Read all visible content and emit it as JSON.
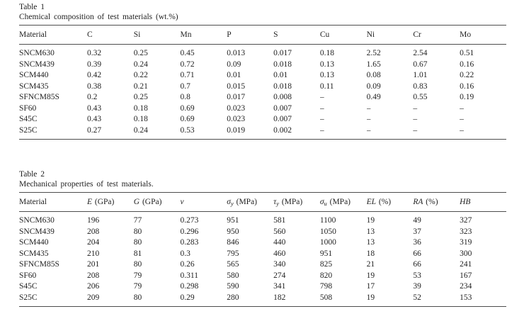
{
  "page": {
    "background_color": "#ffffff",
    "text_color": "#1f1f1f",
    "rule_color": "#4d4d4d"
  },
  "tables": {
    "table1": {
      "caption_label": "Table 1",
      "caption_text": "Chemical composition of test materials (wt.%)",
      "columns": [
        {
          "text": "Material",
          "italic": false
        },
        {
          "text": "C",
          "italic": false
        },
        {
          "text": "Si",
          "italic": false
        },
        {
          "text": "Mn",
          "italic": false
        },
        {
          "text": "P",
          "italic": false
        },
        {
          "text": "S",
          "italic": false
        },
        {
          "text": "Cu",
          "italic": false
        },
        {
          "text": "Ni",
          "italic": false
        },
        {
          "text": "Cr",
          "italic": false
        },
        {
          "text": "Mo",
          "italic": false
        }
      ],
      "rows": [
        [
          "SNCM630",
          "0.32",
          "0.25",
          "0.45",
          "0.013",
          "0.017",
          "0.18",
          "2.52",
          "2.54",
          "0.51"
        ],
        [
          "SNCM439",
          "0.39",
          "0.24",
          "0.72",
          "0.09",
          "0.018",
          "0.13",
          "1.65",
          "0.67",
          "0.16"
        ],
        [
          "SCM440",
          "0.42",
          "0.22",
          "0.71",
          "0.01",
          "0.01",
          "0.13",
          "0.08",
          "1.01",
          "0.22"
        ],
        [
          "SCM435",
          "0.38",
          "0.21",
          "0.7",
          "0.015",
          "0.018",
          "0.11",
          "0.09",
          "0.83",
          "0.16"
        ],
        [
          "SFNCM85S",
          "0.2",
          "0.25",
          "0.8",
          "0.017",
          "0.008",
          "–",
          "0.49",
          "0.55",
          "0.19"
        ],
        [
          "SF60",
          "0.43",
          "0.18",
          "0.69",
          "0.023",
          "0.007",
          "–",
          "–",
          "–",
          "–"
        ],
        [
          "S45C",
          "0.43",
          "0.18",
          "0.69",
          "0.023",
          "0.007",
          "–",
          "–",
          "–",
          "–"
        ],
        [
          "S25C",
          "0.27",
          "0.24",
          "0.53",
          "0.019",
          "0.002",
          "–",
          "–",
          "–",
          "–"
        ]
      ]
    },
    "table2": {
      "caption_label": "Table 2",
      "caption_text": "Mechanical properties of test materials.",
      "columns": [
        {
          "text": "Material",
          "italic": false
        },
        {
          "text": "E",
          "unit": "(GPa)",
          "italic": true
        },
        {
          "text": "G",
          "unit": "(GPa)",
          "italic": true
        },
        {
          "text": "ν",
          "italic": true
        },
        {
          "text": "σ",
          "sub": "y",
          "unit": "(MPa)",
          "italic": true
        },
        {
          "text": "τ",
          "sub": "y",
          "unit": "(MPa)",
          "italic": true
        },
        {
          "text": "σ",
          "sub": "u",
          "unit": "(MPa)",
          "italic": true
        },
        {
          "text": "EL",
          "unit": "(%)",
          "italic": true
        },
        {
          "text": "RA",
          "unit": "(%)",
          "italic": true
        },
        {
          "text": "HB",
          "italic": true
        }
      ],
      "rows": [
        [
          "SNCM630",
          "196",
          "77",
          "0.273",
          "951",
          "581",
          "1100",
          "19",
          "49",
          "327"
        ],
        [
          "SNCM439",
          "208",
          "80",
          "0.296",
          "950",
          "560",
          "1050",
          "13",
          "37",
          "323"
        ],
        [
          "SCM440",
          "204",
          "80",
          "0.283",
          "846",
          "440",
          "1000",
          "13",
          "36",
          "319"
        ],
        [
          "SCM435",
          "210",
          "81",
          "0.3",
          "795",
          "460",
          "951",
          "18",
          "66",
          "300"
        ],
        [
          "SFNCM85S",
          "201",
          "80",
          "0.26",
          "565",
          "340",
          "825",
          "21",
          "66",
          "241"
        ],
        [
          "SF60",
          "208",
          "79",
          "0.311",
          "580",
          "274",
          "820",
          "19",
          "53",
          "167"
        ],
        [
          "S45C",
          "206",
          "79",
          "0.298",
          "590",
          "341",
          "798",
          "17",
          "39",
          "234"
        ],
        [
          "S25C",
          "209",
          "80",
          "0.29",
          "280",
          "182",
          "508",
          "19",
          "52",
          "153"
        ]
      ]
    }
  }
}
